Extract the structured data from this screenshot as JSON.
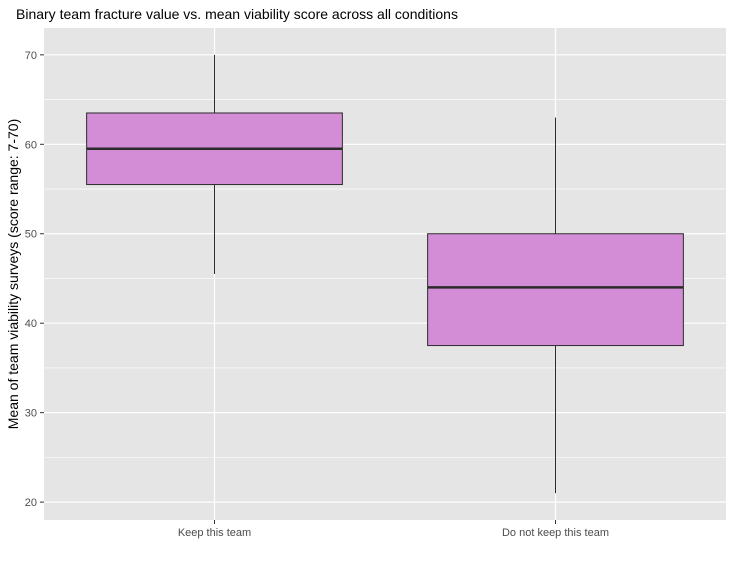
{
  "chart_data": {
    "type": "boxplot",
    "title": "Binary team fracture value vs. mean viability score across all conditions",
    "xlabel": "",
    "ylabel": "Mean of team viability surveys (score range: 7-70)",
    "ylim": [
      18,
      73
    ],
    "yticks": [
      20,
      30,
      40,
      50,
      60,
      70
    ],
    "categories": [
      "Keep this team",
      "Do not keep this team"
    ],
    "boxes": [
      {
        "category": "Keep this team",
        "min": 45.5,
        "q1": 55.5,
        "median": 59.5,
        "q3": 63.5,
        "max": 70
      },
      {
        "category": "Do not keep this team",
        "min": 21,
        "q1": 37.5,
        "median": 44,
        "q3": 50,
        "max": 63
      }
    ],
    "grid": true,
    "colors": {
      "panel_bg": "#e5e5e5",
      "grid_major": "#ffffff",
      "box_fill": "#d38cd6",
      "box_stroke": "#2b2b2b",
      "tick_text": "#4d4d4d"
    }
  }
}
